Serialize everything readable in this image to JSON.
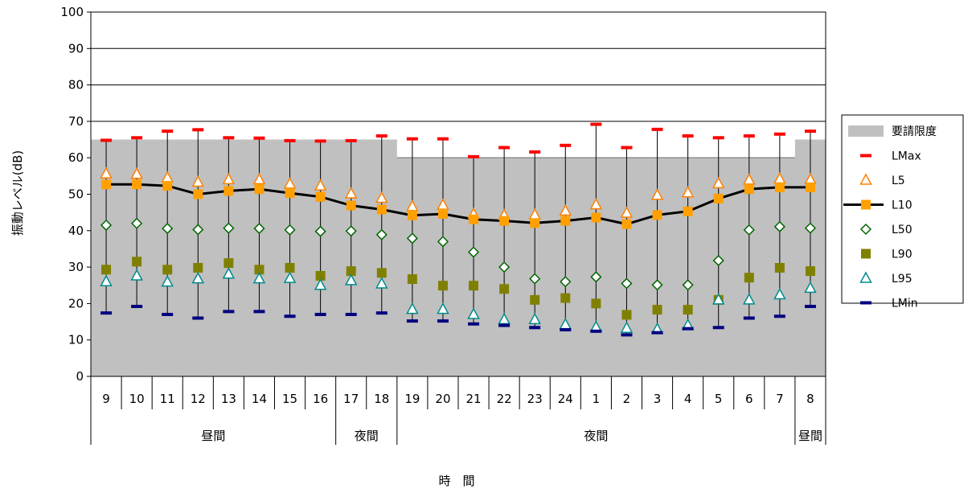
{
  "chart_data": {
    "type": "line",
    "xlabel": "時　間",
    "ylabel": "振動レベル(dB)",
    "ylim": [
      0,
      100
    ],
    "yticks": [
      "0",
      "10",
      "20",
      "30",
      "40",
      "50",
      "60",
      "70",
      "80",
      "90",
      "100"
    ],
    "grid": true,
    "legend_position": "right",
    "categories": [
      "9",
      "10",
      "11",
      "12",
      "13",
      "14",
      "15",
      "16",
      "17",
      "18",
      "19",
      "20",
      "21",
      "22",
      "23",
      "24",
      "1",
      "2",
      "3",
      "4",
      "5",
      "6",
      "7",
      "8"
    ],
    "period_groups": [
      {
        "label": "昼間",
        "start": 0,
        "end": 7
      },
      {
        "label": "夜間",
        "start": 8,
        "end": 9
      },
      {
        "label": "夜間",
        "start": 10,
        "end": 22
      },
      {
        "label": "昼間",
        "start": 23,
        "end": 23
      }
    ],
    "limit_area": {
      "name": "要請限度",
      "values": [
        65,
        65,
        65,
        65,
        65,
        65,
        65,
        65,
        65,
        65,
        60,
        60,
        60,
        60,
        60,
        60,
        60,
        60,
        60,
        60,
        60,
        60,
        60,
        65
      ],
      "color": "#c0c0c0"
    },
    "series": [
      {
        "name": "LMax",
        "marker": "dash",
        "color": "#ff0000",
        "values": [
          64.8,
          65.5,
          67.3,
          67.7,
          65.5,
          65.4,
          64.7,
          64.6,
          64.7,
          66.0,
          65.2,
          65.2,
          60.3,
          62.8,
          61.6,
          63.4,
          69.2,
          62.8,
          67.8,
          66.0,
          65.5,
          66.0,
          66.5,
          67.3
        ]
      },
      {
        "name": "L5",
        "marker": "triangle-open",
        "color": "#ff8000",
        "values": [
          55.6,
          55.5,
          54.5,
          53.3,
          54.0,
          54.0,
          52.8,
          52.3,
          50.1,
          48.9,
          46.6,
          47.0,
          44.5,
          44.2,
          44.3,
          45.4,
          47.1,
          44.8,
          49.7,
          50.4,
          52.9,
          53.9,
          54.2,
          54.0
        ]
      },
      {
        "name": "L10",
        "marker": "square",
        "color": "#ffa000",
        "line": "#000000",
        "values": [
          52.7,
          52.7,
          52.3,
          50.0,
          50.9,
          51.4,
          50.3,
          49.3,
          46.9,
          45.8,
          44.2,
          44.6,
          43.1,
          42.7,
          42.1,
          42.7,
          43.6,
          41.8,
          44.3,
          45.3,
          48.8,
          51.4,
          51.9,
          51.9
        ]
      },
      {
        "name": "L50",
        "marker": "diamond-open",
        "color": "#006400",
        "values": [
          41.5,
          42.0,
          40.6,
          40.3,
          40.7,
          40.6,
          40.2,
          39.8,
          39.9,
          38.9,
          37.9,
          37.0,
          34.1,
          30.0,
          26.8,
          26.0,
          27.3,
          25.5,
          25.1,
          25.1,
          31.8,
          40.2,
          41.1,
          40.7
        ]
      },
      {
        "name": "L90",
        "marker": "square",
        "color": "#808000",
        "values": [
          29.3,
          31.5,
          29.3,
          29.8,
          31.1,
          29.3,
          29.8,
          27.6,
          28.9,
          28.4,
          26.7,
          24.9,
          24.9,
          24.0,
          21.0,
          21.5,
          20.0,
          16.9,
          18.3,
          18.3,
          21.0,
          27.1,
          29.8,
          28.9
        ]
      },
      {
        "name": "L95",
        "marker": "triangle-open",
        "color": "#008b8b",
        "values": [
          26.0,
          27.6,
          25.9,
          26.8,
          28.1,
          26.8,
          26.9,
          25.0,
          26.3,
          25.4,
          18.4,
          18.4,
          17.0,
          15.6,
          15.6,
          14.2,
          13.5,
          13.2,
          12.9,
          14.0,
          21.0,
          21.0,
          22.4,
          24.2
        ]
      },
      {
        "name": "LMin",
        "marker": "dash",
        "color": "#00007f",
        "values": [
          17.4,
          19.2,
          17.0,
          16.0,
          17.8,
          17.8,
          16.5,
          17.0,
          17.0,
          17.4,
          15.2,
          15.2,
          14.4,
          14.0,
          13.4,
          12.8,
          12.4,
          11.4,
          12.0,
          13.1,
          13.4,
          16.0,
          16.5,
          19.2
        ]
      }
    ]
  }
}
